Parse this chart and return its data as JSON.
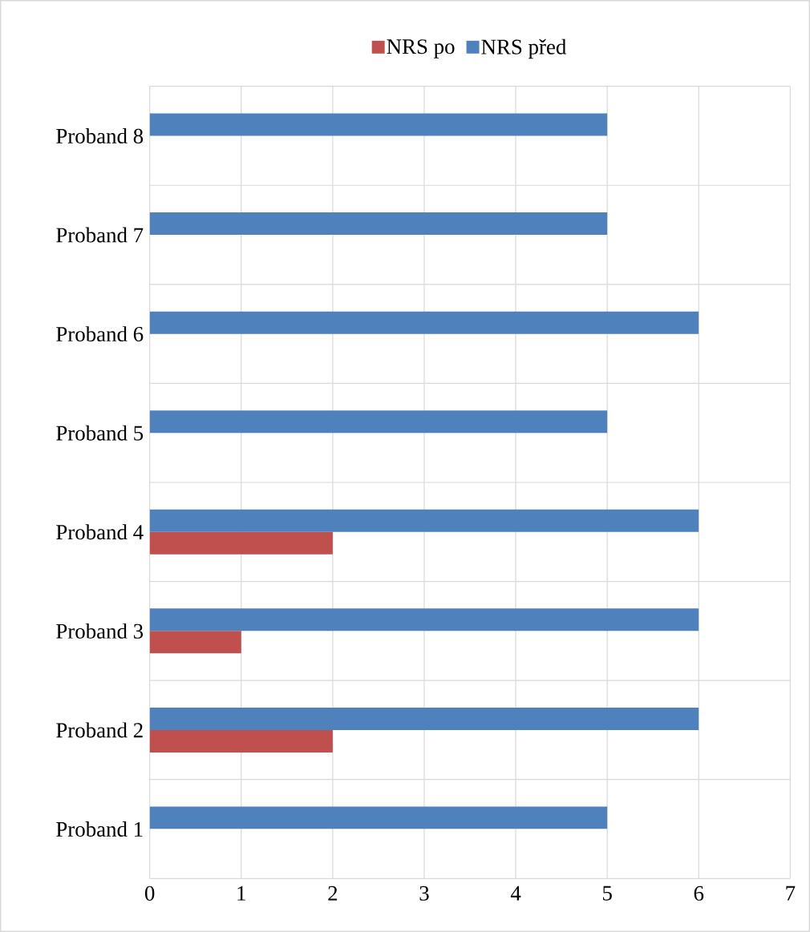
{
  "chart_data": {
    "type": "bar",
    "orientation": "horizontal",
    "categories": [
      "Proband 8",
      "Proband 7",
      "Proband 6",
      "Proband 5",
      "Proband 4",
      "Proband 3",
      "Proband 2",
      "Proband 1"
    ],
    "series": [
      {
        "name": "NRS po",
        "color": "#c0504d",
        "values": [
          0,
          0,
          0,
          0,
          2,
          1,
          2,
          0
        ]
      },
      {
        "name": "NRS před",
        "color": "#4f81bd",
        "values": [
          5,
          5,
          6,
          5,
          6,
          6,
          6,
          5
        ]
      }
    ],
    "xlim": [
      0,
      7
    ],
    "xticks": [
      0,
      1,
      2,
      3,
      4,
      5,
      6,
      7
    ],
    "grid": true,
    "legend": "top"
  }
}
